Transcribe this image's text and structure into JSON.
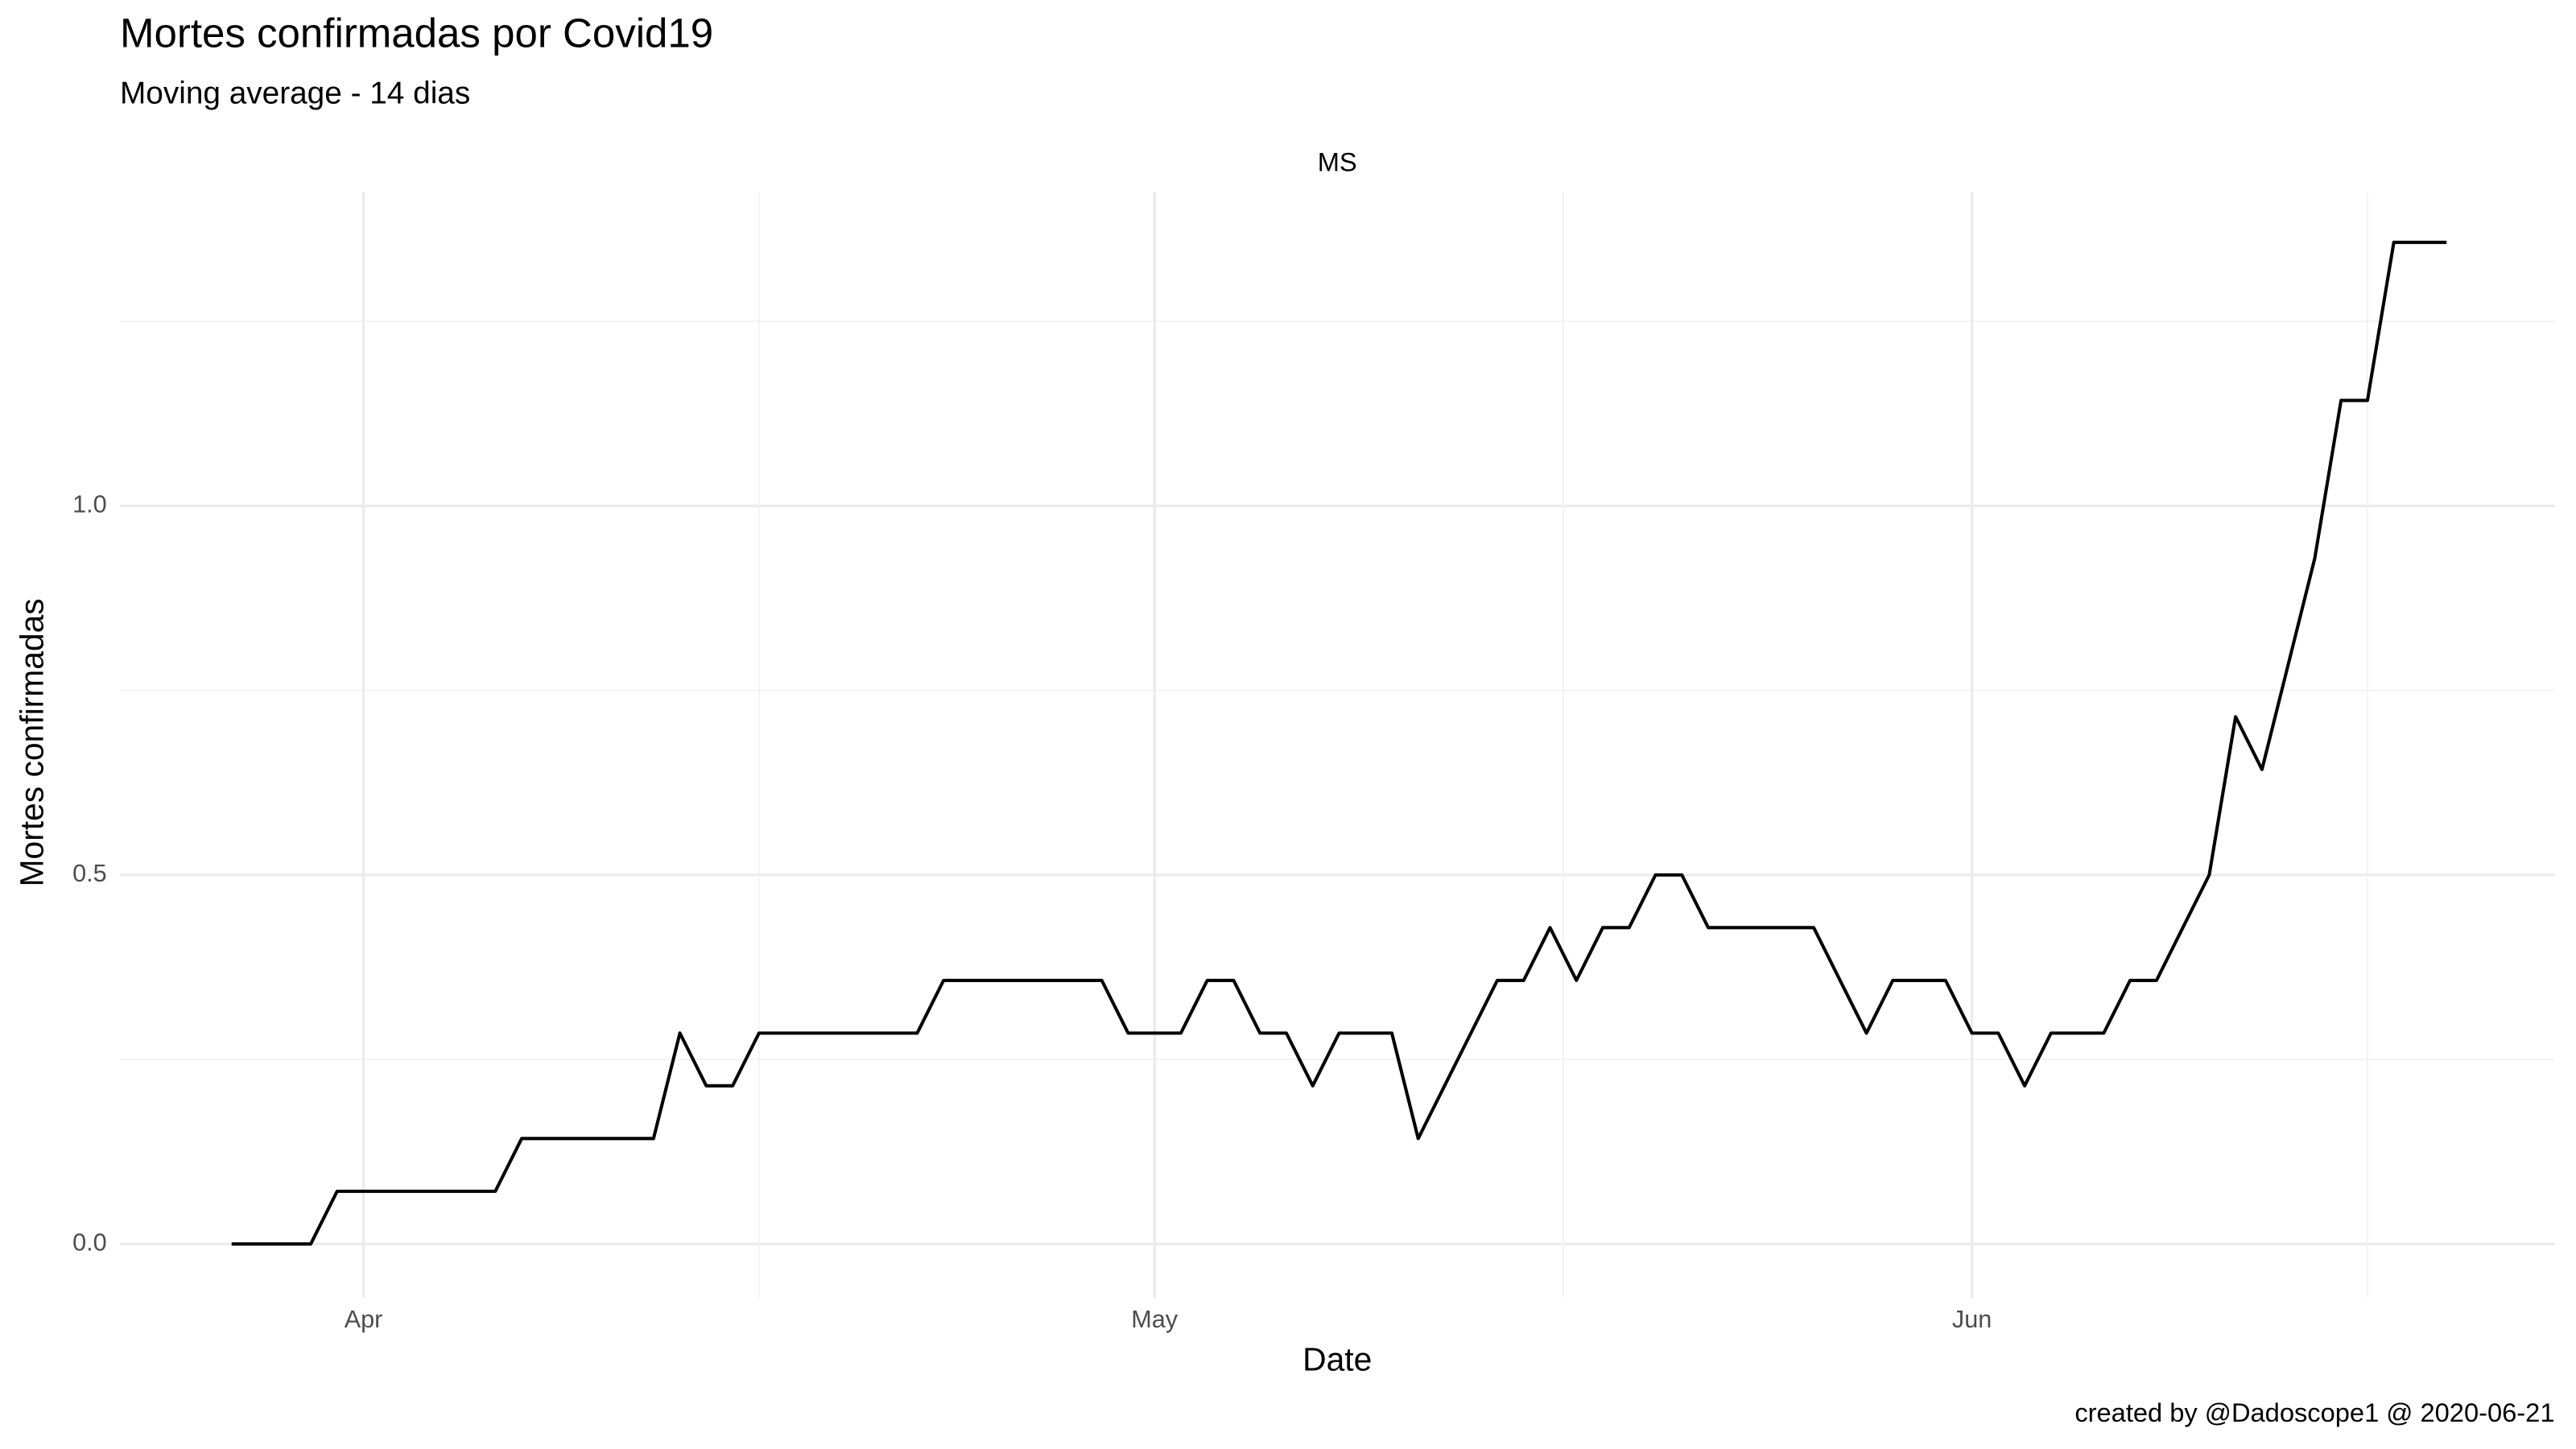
{
  "chart_data": {
    "type": "line",
    "title": "Mortes confirmadas por Covid19",
    "subtitle": "Moving average - 14 dias",
    "facet": "MS",
    "x_label": "Date",
    "y_label": "Mortes confirmadas",
    "caption": "created by @Dadoscope1 @ 2020-06-21",
    "categories": [
      null,
      null,
      null,
      null,
      null,
      "Apr",
      null,
      null,
      null,
      null,
      null,
      null,
      null,
      null,
      null,
      null,
      null,
      null,
      null,
      null,
      null,
      null,
      null,
      null,
      null,
      null,
      null,
      null,
      null,
      null,
      null,
      null,
      null,
      null,
      null,
      "May",
      null,
      null,
      null,
      null,
      null,
      null,
      null,
      null,
      null,
      null,
      null,
      null,
      null,
      null,
      null,
      null,
      null,
      null,
      null,
      null,
      null,
      null,
      null,
      null,
      null,
      null,
      null,
      null,
      null,
      null,
      "Jun",
      null,
      null,
      null,
      null,
      null,
      null,
      null,
      null,
      null,
      null,
      null,
      null,
      null,
      null,
      null,
      null,
      null,
      null
    ],
    "values": [
      0,
      0,
      0,
      0,
      0.0714,
      0.0714,
      0.0714,
      0.0714,
      0.0714,
      0.0714,
      0.0714,
      0.1429,
      0.1429,
      0.1429,
      0.1429,
      0.1429,
      0.1429,
      0.2857,
      0.2143,
      0.2143,
      0.2857,
      0.2857,
      0.2857,
      0.2857,
      0.2857,
      0.2857,
      0.2857,
      0.3571,
      0.3571,
      0.3571,
      0.3571,
      0.3571,
      0.3571,
      0.3571,
      0.2857,
      0.2857,
      0.2857,
      0.3571,
      0.3571,
      0.2857,
      0.2857,
      0.2143,
      0.2857,
      0.2857,
      0.2857,
      0.1429,
      0.2143,
      0.2857,
      0.3571,
      0.3571,
      0.4286,
      0.3571,
      0.4286,
      0.4286,
      0.5,
      0.5,
      0.4286,
      0.4286,
      0.4286,
      0.4286,
      0.4286,
      0.3571,
      0.2857,
      0.3571,
      0.3571,
      0.3571,
      0.2857,
      0.2857,
      0.2143,
      0.2857,
      0.2857,
      0.2857,
      0.3571,
      0.3571,
      0.4286,
      0.5,
      0.7143,
      0.6429,
      0.7857,
      0.9286,
      1.1429,
      1.1429,
      1.3571,
      1.3571,
      1.3571
    ],
    "color": "#000000",
    "ylim": [
      -0.073,
      1.425
    ],
    "yticks": [
      {
        "value": 0,
        "label": "0.0"
      },
      0.5,
      {
        "value": 1,
        "label": "1.0"
      }
    ],
    "grid": true
  }
}
